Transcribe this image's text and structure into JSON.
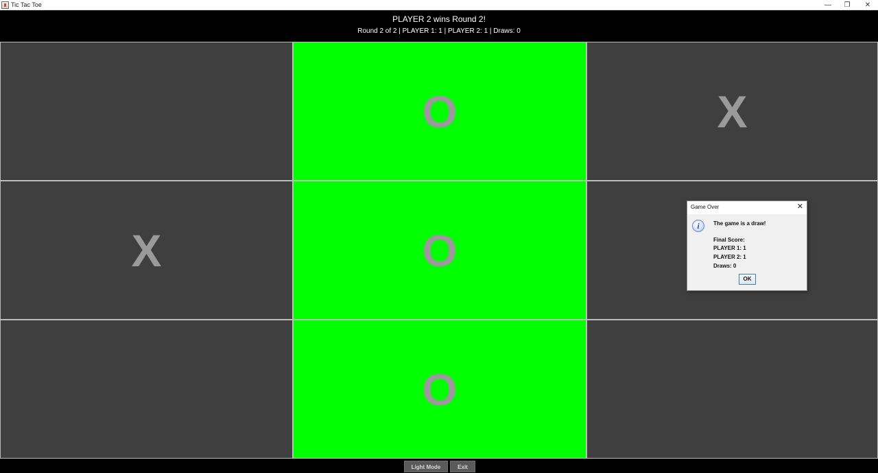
{
  "window": {
    "title": "Tic Tac Toe",
    "minimize_glyph": "—",
    "maximize_glyph": "❐",
    "close_glyph": "✕"
  },
  "header": {
    "status": "PLAYER 2 wins Round 2!",
    "scoreline": "Round 2 of 2 | PLAYER 1: 1 | PLAYER 2: 1 | Draws: 0"
  },
  "board": {
    "cells": [
      {
        "mark": "",
        "highlight": false
      },
      {
        "mark": "O",
        "highlight": true
      },
      {
        "mark": "X",
        "highlight": false
      },
      {
        "mark": "X",
        "highlight": false
      },
      {
        "mark": "O",
        "highlight": true
      },
      {
        "mark": "",
        "highlight": false
      },
      {
        "mark": "",
        "highlight": false
      },
      {
        "mark": "O",
        "highlight": true
      },
      {
        "mark": "",
        "highlight": false
      }
    ],
    "cell_color": "#3f3f3f",
    "win_color": "#00ff00",
    "mark_color": "#9a9a9a"
  },
  "controls": {
    "light_mode_label": "Light Mode",
    "exit_label": "Exit"
  },
  "dialog": {
    "title": "Game Over",
    "close_glyph": "✕",
    "icon": "info-icon",
    "message": "The game is a draw!",
    "final_score_label": "Final Score:",
    "player1": "PLAYER 1: 1",
    "player2": "PLAYER 2: 1",
    "draws": "Draws: 0",
    "ok_label": "OK"
  }
}
